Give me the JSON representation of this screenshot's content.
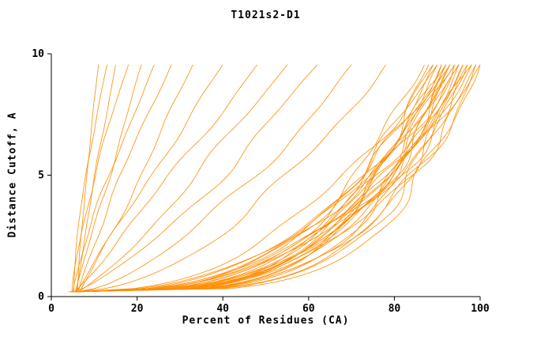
{
  "chart_data": {
    "type": "line",
    "title": "T1021s2-D1",
    "xlabel": "Percent of Residues (CA)",
    "ylabel": "Distance Cutoff, A",
    "xlim": [
      0,
      100
    ],
    "ylim": [
      0,
      10
    ],
    "x_ticks": [
      0,
      20,
      40,
      60,
      80,
      100
    ],
    "y_ticks": [
      0,
      5,
      10
    ],
    "line_color": "#ff8c00",
    "axis_color": "#000000",
    "y_start": 0.2,
    "y_end": 9.55,
    "series_keys": {
      "x0": "percent of residues at cutoff 0.2 A",
      "p": "percent of residues at cutoff 9.55 A",
      "k": "curve shape exponent"
    },
    "series": [
      {
        "x0": 4.0,
        "p": 100,
        "k": 0.22
      },
      {
        "x0": 4.5,
        "p": 99,
        "k": 0.24
      },
      {
        "x0": 5.0,
        "p": 100,
        "k": 0.3
      },
      {
        "x0": 5.5,
        "p": 98,
        "k": 0.26
      },
      {
        "x0": 6.0,
        "p": 99,
        "k": 0.34
      },
      {
        "x0": 4.2,
        "p": 97,
        "k": 0.28
      },
      {
        "x0": 4.8,
        "p": 98,
        "k": 0.36
      },
      {
        "x0": 5.2,
        "p": 97,
        "k": 0.23
      },
      {
        "x0": 5.8,
        "p": 96,
        "k": 0.31
      },
      {
        "x0": 6.2,
        "p": 96,
        "k": 0.27
      },
      {
        "x0": 4.4,
        "p": 95,
        "k": 0.33
      },
      {
        "x0": 5.1,
        "p": 95,
        "k": 0.25
      },
      {
        "x0": 5.6,
        "p": 95,
        "k": 0.38
      },
      {
        "x0": 6.4,
        "p": 94,
        "k": 0.29
      },
      {
        "x0": 4.6,
        "p": 94,
        "k": 0.35
      },
      {
        "x0": 5.3,
        "p": 94,
        "k": 0.24
      },
      {
        "x0": 5.9,
        "p": 93,
        "k": 0.32
      },
      {
        "x0": 6.1,
        "p": 93,
        "k": 0.27
      },
      {
        "x0": 4.7,
        "p": 93,
        "k": 0.4
      },
      {
        "x0": 5.4,
        "p": 92,
        "k": 0.3
      },
      {
        "x0": 6.0,
        "p": 92,
        "k": 0.25
      },
      {
        "x0": 4.9,
        "p": 92,
        "k": 0.36
      },
      {
        "x0": 5.5,
        "p": 91,
        "k": 0.28
      },
      {
        "x0": 6.3,
        "p": 91,
        "k": 0.33
      },
      {
        "x0": 5.0,
        "p": 90,
        "k": 0.26
      },
      {
        "x0": 5.7,
        "p": 90,
        "k": 0.38
      },
      {
        "x0": 6.5,
        "p": 89,
        "k": 0.3
      },
      {
        "x0": 5.2,
        "p": 89,
        "k": 0.42
      },
      {
        "x0": 5.8,
        "p": 88,
        "k": 0.27
      },
      {
        "x0": 6.6,
        "p": 87,
        "k": 0.34
      },
      {
        "x0": 5.5,
        "p": 78,
        "k": 0.55
      },
      {
        "x0": 6.0,
        "p": 70,
        "k": 0.65
      },
      {
        "x0": 5.0,
        "p": 62,
        "k": 0.75
      },
      {
        "x0": 6.2,
        "p": 55,
        "k": 0.85
      },
      {
        "x0": 5.4,
        "p": 48,
        "k": 0.95
      },
      {
        "x0": 6.6,
        "p": 40,
        "k": 1.05
      },
      {
        "x0": 5.8,
        "p": 33,
        "k": 0.9
      },
      {
        "x0": 6.3,
        "p": 28,
        "k": 1.15
      },
      {
        "x0": 5.0,
        "p": 24,
        "k": 1.2
      },
      {
        "x0": 5.6,
        "p": 21,
        "k": 1.0
      },
      {
        "x0": 4.8,
        "p": 18,
        "k": 1.35
      },
      {
        "x0": 5.9,
        "p": 15,
        "k": 1.1
      },
      {
        "x0": 5.2,
        "p": 13,
        "k": 1.5
      },
      {
        "x0": 6.1,
        "p": 11,
        "k": 1.25
      }
    ]
  }
}
